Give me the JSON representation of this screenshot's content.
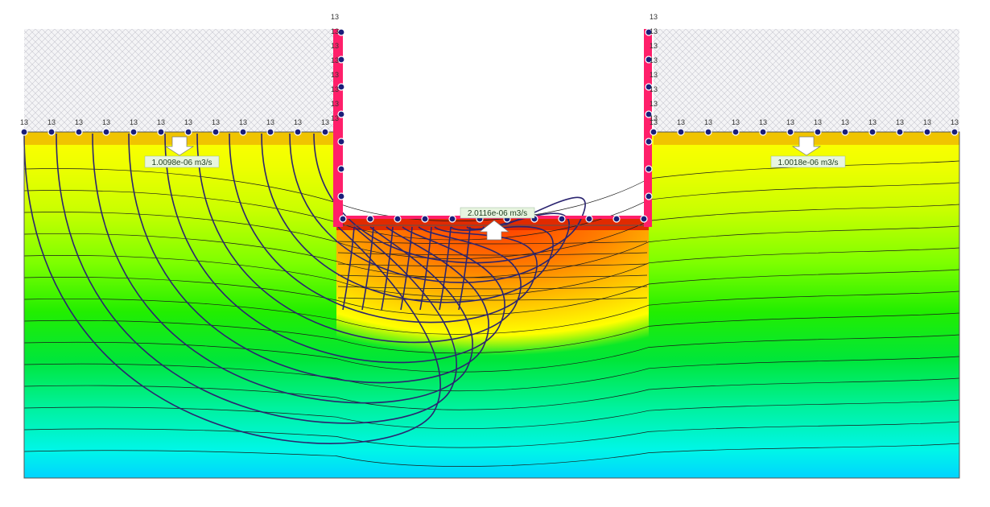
{
  "boundary_label": "13",
  "flux_labels": {
    "left": "1.0098e-06 m3/s",
    "bottom_excavation": "2.0116e-06 m3/s",
    "right": "1.0018e-06 m3/s"
  },
  "colors": {
    "hatch_line": "#c8c8d0",
    "wall": "#ff1f6a",
    "flowline": "#2b2470",
    "contour": "#1a1a1a",
    "node_fill": "#1a1e7a",
    "node_ring": "#ffffff",
    "flux_box_fill": "#e8f5e0",
    "flux_box_stroke": "#9ab89a"
  },
  "icons": [
    "flux-arrow-down-icon",
    "flux-arrow-up-icon",
    "boundary-node-icon"
  ]
}
